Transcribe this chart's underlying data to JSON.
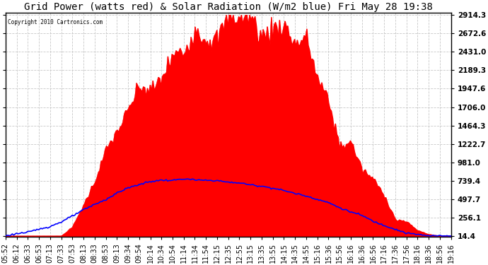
{
  "title": "Grid Power (watts red) & Solar Radiation (W/m2 blue) Fri May 28 19:38",
  "copyright": "Copyright 2010 Cartronics.com",
  "yticks": [
    14.4,
    256.1,
    497.7,
    739.4,
    981.0,
    1222.7,
    1464.3,
    1706.0,
    1947.6,
    2189.3,
    2431.0,
    2672.6,
    2914.3
  ],
  "ymin": 14.4,
  "ymax": 2914.3,
  "background_color": "#ffffff",
  "grid_color": "#c8c8c8",
  "title_fontsize": 10,
  "xlabel_fontsize": 7,
  "ylabel_fontsize": 7.5,
  "x_labels": [
    "05:52",
    "06:12",
    "06:33",
    "06:53",
    "07:13",
    "07:33",
    "07:53",
    "08:13",
    "08:33",
    "08:53",
    "09:13",
    "09:34",
    "09:54",
    "10:14",
    "10:34",
    "10:54",
    "11:14",
    "11:34",
    "11:54",
    "12:15",
    "12:35",
    "12:55",
    "13:15",
    "13:35",
    "13:55",
    "14:15",
    "14:35",
    "14:55",
    "15:16",
    "15:36",
    "15:56",
    "16:16",
    "16:36",
    "16:56",
    "17:16",
    "17:36",
    "17:56",
    "18:16",
    "18:36",
    "18:56",
    "19:16"
  ],
  "red_vals": [
    14.4,
    14.4,
    14.4,
    14.4,
    14.4,
    14.4,
    120,
    400,
    750,
    1100,
    1420,
    1700,
    1950,
    2150,
    2320,
    2460,
    2580,
    2680,
    2750,
    2810,
    2870,
    2914,
    2890,
    2860,
    2820,
    2770,
    2720,
    2500,
    2200,
    1900,
    1600,
    1250,
    950,
    700,
    500,
    350,
    200,
    100,
    40,
    14.4,
    14.4
  ],
  "red_noise_seed": 42,
  "blue_vals": [
    14.4,
    30,
    60,
    95,
    140,
    200,
    270,
    350,
    430,
    510,
    580,
    640,
    690,
    725,
    745,
    755,
    758,
    755,
    748,
    738,
    725,
    710,
    692,
    670,
    645,
    615,
    580,
    540,
    495,
    445,
    390,
    330,
    268,
    205,
    150,
    100,
    65,
    38,
    20,
    14.4,
    14.4
  ]
}
